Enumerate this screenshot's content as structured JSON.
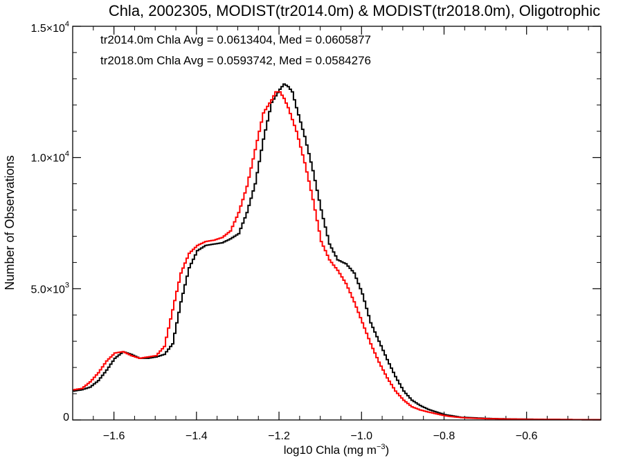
{
  "chart_data": {
    "type": "line",
    "title": "Chla, 2002305, MODIST(tr2014.0m) & MODIST(tr2018.0m), Oligotrophic",
    "xlabel_main": "log10 Chla (mg m",
    "xlabel_exp": "−3",
    "xlabel_close": ")",
    "ylabel": "Number of Observations",
    "xlim": [
      -1.7,
      -0.42
    ],
    "ylim": [
      0,
      15000
    ],
    "x_ticks": [
      {
        "value": -1.6,
        "label": "−1.6"
      },
      {
        "value": -1.4,
        "label": "−1.4"
      },
      {
        "value": -1.2,
        "label": "−1.2"
      },
      {
        "value": -1.0,
        "label": "−1.0"
      },
      {
        "value": -0.8,
        "label": "−0.8"
      },
      {
        "value": -0.6,
        "label": "−0.6"
      }
    ],
    "y_ticks": [
      {
        "value": 0,
        "mantissa": "0",
        "exp": ""
      },
      {
        "value": 5000,
        "mantissa": "5.0×10",
        "exp": "3"
      },
      {
        "value": 10000,
        "mantissa": "1.0×10",
        "exp": "4"
      },
      {
        "value": 15000,
        "mantissa": "1.5×10",
        "exp": "4"
      }
    ],
    "annotations": [
      {
        "text": "tr2014.0m Chla Avg = 0.0613404, Med = 0.0605877",
        "color": "#000000"
      },
      {
        "text": "tr2018.0m Chla Avg = 0.0593742, Med = 0.0584276",
        "color": "#ff0000"
      }
    ],
    "series": [
      {
        "color": "#000000",
        "x": [
          -1.7,
          -1.68,
          -1.66,
          -1.64,
          -1.62,
          -1.6,
          -1.58,
          -1.56,
          -1.54,
          -1.52,
          -1.5,
          -1.48,
          -1.46,
          -1.44,
          -1.42,
          -1.4,
          -1.38,
          -1.36,
          -1.34,
          -1.32,
          -1.3,
          -1.28,
          -1.26,
          -1.24,
          -1.22,
          -1.2,
          -1.19,
          -1.18,
          -1.17,
          -1.16,
          -1.14,
          -1.12,
          -1.1,
          -1.08,
          -1.06,
          -1.04,
          -1.02,
          -1.0,
          -0.98,
          -0.96,
          -0.94,
          -0.92,
          -0.9,
          -0.88,
          -0.86,
          -0.84,
          -0.82,
          -0.8,
          -0.78,
          -0.76,
          -0.74,
          -0.7,
          -0.65,
          -0.6,
          -0.55,
          -0.5,
          -0.45,
          -0.42
        ],
        "y": [
          1100,
          1150,
          1250,
          1500,
          1900,
          2350,
          2600,
          2500,
          2350,
          2350,
          2400,
          2500,
          2900,
          4500,
          5800,
          6450,
          6650,
          6700,
          6750,
          6900,
          7100,
          7900,
          9000,
          10700,
          12100,
          12600,
          12800,
          12700,
          12500,
          11900,
          10800,
          9500,
          8000,
          6700,
          6100,
          5950,
          5600,
          4800,
          3700,
          3000,
          2300,
          1650,
          1100,
          750,
          550,
          400,
          300,
          200,
          150,
          100,
          90,
          60,
          40,
          30,
          20,
          15,
          10,
          10
        ]
      },
      {
        "color": "#ff0000",
        "x": [
          -1.7,
          -1.68,
          -1.66,
          -1.64,
          -1.62,
          -1.6,
          -1.58,
          -1.56,
          -1.54,
          -1.52,
          -1.5,
          -1.48,
          -1.46,
          -1.44,
          -1.42,
          -1.4,
          -1.38,
          -1.36,
          -1.34,
          -1.32,
          -1.3,
          -1.28,
          -1.26,
          -1.24,
          -1.22,
          -1.21,
          -1.2,
          -1.19,
          -1.18,
          -1.16,
          -1.14,
          -1.12,
          -1.1,
          -1.08,
          -1.06,
          -1.04,
          -1.02,
          -1.0,
          -0.98,
          -0.96,
          -0.94,
          -0.92,
          -0.9,
          -0.88,
          -0.86,
          -0.84,
          -0.82,
          -0.8,
          -0.78,
          -0.76,
          -0.74,
          -0.7,
          -0.65,
          -0.6,
          -0.55,
          -0.5,
          -0.45,
          -0.42
        ],
        "y": [
          1150,
          1200,
          1450,
          1800,
          2250,
          2550,
          2600,
          2450,
          2350,
          2400,
          2450,
          2800,
          4200,
          5600,
          6350,
          6650,
          6800,
          6850,
          6950,
          7200,
          7900,
          8900,
          10300,
          11700,
          12200,
          12500,
          12500,
          12250,
          11900,
          11000,
          9800,
          8400,
          6800,
          6100,
          5700,
          5200,
          4500,
          3700,
          2900,
          2200,
          1600,
          1100,
          750,
          500,
          380,
          300,
          230,
          160,
          120,
          90,
          70,
          50,
          35,
          25,
          20,
          15,
          10,
          10
        ]
      }
    ]
  }
}
